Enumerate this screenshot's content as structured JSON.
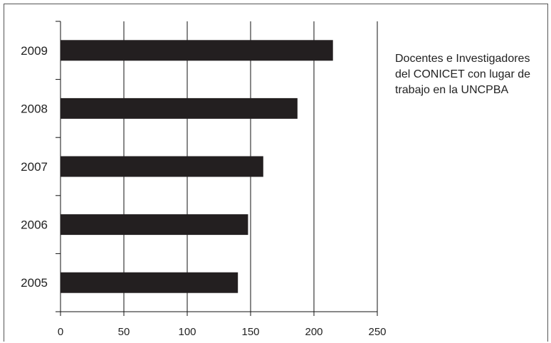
{
  "chart_data": {
    "type": "bar",
    "orientation": "horizontal",
    "categories": [
      "2009",
      "2008",
      "2007",
      "2006",
      "2005"
    ],
    "values": [
      215,
      187,
      160,
      148,
      140
    ],
    "xlim": [
      0,
      250
    ],
    "xticks": [
      0,
      50,
      100,
      150,
      200,
      250
    ],
    "grid": "vertical",
    "bar_color": "#231f20",
    "legend": "Docentes e Investigadores del CONICET con lugar de trabajo en la UNCPBA",
    "legend_position": "right"
  }
}
